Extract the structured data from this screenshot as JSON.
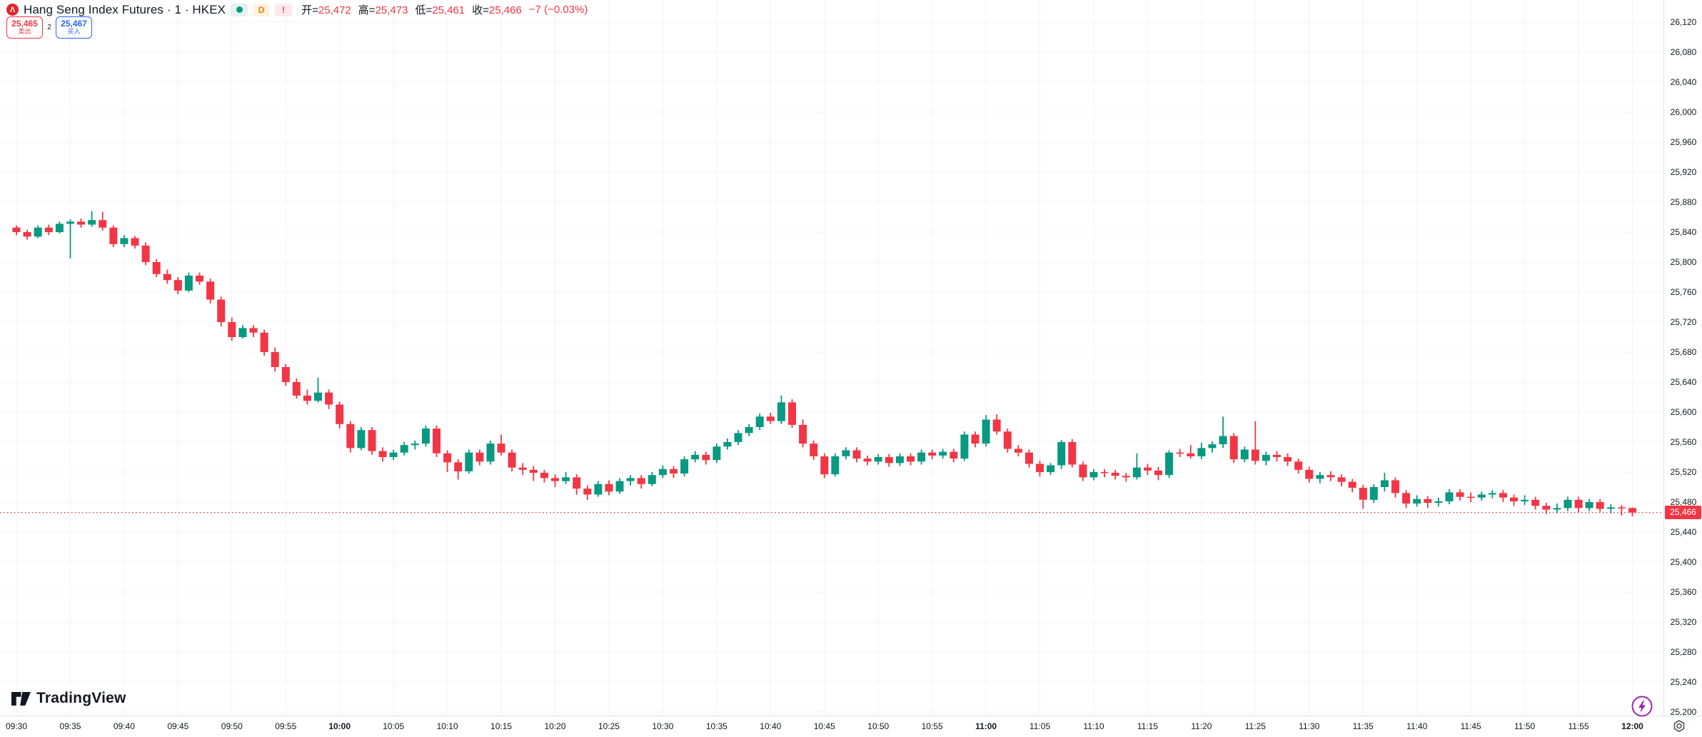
{
  "header": {
    "symbol_title": "Hang Seng Index Futures · 1 · HKEX",
    "interval_badge": "D",
    "alert_badge": "!",
    "ohlc": {
      "open_label": "开",
      "open": "25,472",
      "high_label": "高",
      "high": "25,473",
      "low_label": "低",
      "low": "25,461",
      "close_label": "收",
      "close": "25,466",
      "change": "−7 (−0.03%)"
    }
  },
  "trade_widget": {
    "sell_price": "25,465",
    "sell_label": "卖出",
    "spread": "2",
    "buy_price": "25,467",
    "buy_label": "买入"
  },
  "watermark": {
    "brand": "TradingView"
  },
  "price_axis": {
    "labels": [
      "26,120",
      "26,080",
      "26,040",
      "26,000",
      "25,960",
      "25,920",
      "25,880",
      "25,840",
      "25,800",
      "25,760",
      "25,720",
      "25,680",
      "25,640",
      "25,600",
      "25,560",
      "25,520",
      "25,480",
      "25,440",
      "25,400",
      "25,360",
      "25,320",
      "25,280",
      "25,240",
      "25,200"
    ],
    "last_price_label": "25,466"
  },
  "time_axis": {
    "labels": [
      "09:30",
      "09:35",
      "09:40",
      "09:45",
      "09:50",
      "09:55",
      "10:00",
      "10:05",
      "10:10",
      "10:15",
      "10:20",
      "10:25",
      "10:30",
      "10:35",
      "10:40",
      "10:45",
      "10:50",
      "10:55",
      "11:00",
      "11:05",
      "11:10",
      "11:15",
      "11:20",
      "11:25",
      "11:30",
      "11:35",
      "11:40",
      "11:45",
      "11:50",
      "11:55",
      "12:00"
    ],
    "bold_labels": [
      "10:00",
      "11:00",
      "12:00"
    ]
  },
  "colors": {
    "up": "#089981",
    "down": "#f23645",
    "grid": "#f0f3fa",
    "axis_border": "#e0e3eb",
    "last_price": "#f23645",
    "accent_buy": "#2962ff"
  },
  "chart_data": {
    "type": "candlestick",
    "title": "Hang Seng Index Futures · 1 · HKEX",
    "interval_minutes": 1,
    "x_start": "09:30",
    "x_end": "12:00",
    "ylim": [
      25185,
      26135
    ],
    "price_tick_step": 40,
    "grid": true,
    "last_price": 25466,
    "candles_ohlc": [
      [
        25846,
        25849,
        25836,
        25840
      ],
      [
        25840,
        25843,
        25830,
        25834
      ],
      [
        25834,
        25849,
        25832,
        25846
      ],
      [
        25846,
        25850,
        25836,
        25840
      ],
      [
        25840,
        25854,
        25838,
        25851
      ],
      [
        25851,
        25857,
        25805,
        25854
      ],
      [
        25854,
        25858,
        25846,
        25850
      ],
      [
        25850,
        25868,
        25847,
        25856
      ],
      [
        25856,
        25867,
        25842,
        25846
      ],
      [
        25846,
        25849,
        25820,
        25824
      ],
      [
        25824,
        25836,
        25820,
        25832
      ],
      [
        25832,
        25835,
        25818,
        25822
      ],
      [
        25822,
        25826,
        25796,
        25800
      ],
      [
        25800,
        25804,
        25780,
        25784
      ],
      [
        25784,
        25790,
        25771,
        25776
      ],
      [
        25776,
        25780,
        25757,
        25762
      ],
      [
        25762,
        25786,
        25760,
        25782
      ],
      [
        25782,
        25786,
        25770,
        25774
      ],
      [
        25774,
        25778,
        25745,
        25750
      ],
      [
        25750,
        25754,
        25714,
        25720
      ],
      [
        25720,
        25726,
        25695,
        25700
      ],
      [
        25700,
        25716,
        25698,
        25712
      ],
      [
        25712,
        25716,
        25700,
        25706
      ],
      [
        25706,
        25710,
        25675,
        25680
      ],
      [
        25680,
        25686,
        25654,
        25660
      ],
      [
        25660,
        25664,
        25635,
        25640
      ],
      [
        25640,
        25645,
        25618,
        25622
      ],
      [
        25622,
        25630,
        25610,
        25615
      ],
      [
        25615,
        25646,
        25613,
        25626
      ],
      [
        25626,
        25630,
        25604,
        25610
      ],
      [
        25610,
        25614,
        25578,
        25584
      ],
      [
        25584,
        25588,
        25546,
        25552
      ],
      [
        25552,
        25580,
        25549,
        25576
      ],
      [
        25576,
        25580,
        25543,
        25548
      ],
      [
        25548,
        25553,
        25534,
        25540
      ],
      [
        25540,
        25550,
        25536,
        25546
      ],
      [
        25546,
        25560,
        25542,
        25556
      ],
      [
        25556,
        25562,
        25550,
        25558
      ],
      [
        25558,
        25582,
        25554,
        25578
      ],
      [
        25578,
        25582,
        25540,
        25545
      ],
      [
        25545,
        25549,
        25520,
        25533
      ],
      [
        25533,
        25537,
        25510,
        25521
      ],
      [
        25521,
        25550,
        25518,
        25546
      ],
      [
        25546,
        25550,
        25529,
        25534
      ],
      [
        25534,
        25562,
        25530,
        25558
      ],
      [
        25558,
        25570,
        25542,
        25546
      ],
      [
        25546,
        25550,
        25521,
        25526
      ],
      [
        25526,
        25532,
        25516,
        25523
      ],
      [
        25523,
        25528,
        25508,
        25519
      ],
      [
        25519,
        25523,
        25506,
        25512
      ],
      [
        25512,
        25517,
        25500,
        25508
      ],
      [
        25508,
        25520,
        25504,
        25513
      ],
      [
        25513,
        25517,
        25490,
        25498
      ],
      [
        25498,
        25502,
        25483,
        25490
      ],
      [
        25490,
        25508,
        25487,
        25504
      ],
      [
        25504,
        25509,
        25489,
        25494
      ],
      [
        25494,
        25512,
        25491,
        25508
      ],
      [
        25508,
        25516,
        25502,
        25512
      ],
      [
        25512,
        25516,
        25498,
        25504
      ],
      [
        25504,
        25520,
        25501,
        25516
      ],
      [
        25516,
        25529,
        25512,
        25524
      ],
      [
        25524,
        25528,
        25512,
        25518
      ],
      [
        25518,
        25541,
        25514,
        25537
      ],
      [
        25537,
        25548,
        25533,
        25543
      ],
      [
        25543,
        25547,
        25530,
        25536
      ],
      [
        25536,
        25558,
        25532,
        25554
      ],
      [
        25554,
        25565,
        25550,
        25560
      ],
      [
        25560,
        25576,
        25556,
        25572
      ],
      [
        25572,
        25584,
        25568,
        25580
      ],
      [
        25580,
        25598,
        25576,
        25594
      ],
      [
        25594,
        25599,
        25584,
        25588
      ],
      [
        25588,
        25622,
        25584,
        25613
      ],
      [
        25613,
        25617,
        25579,
        25583
      ],
      [
        25583,
        25590,
        25553,
        25558
      ],
      [
        25558,
        25562,
        25536,
        25541
      ],
      [
        25541,
        25545,
        25512,
        25517
      ],
      [
        25517,
        25545,
        25514,
        25541
      ],
      [
        25541,
        25553,
        25537,
        25549
      ],
      [
        25549,
        25553,
        25533,
        25538
      ],
      [
        25538,
        25542,
        25529,
        25534
      ],
      [
        25534,
        25544,
        25530,
        25540
      ],
      [
        25540,
        25544,
        25527,
        25532
      ],
      [
        25532,
        25545,
        25528,
        25541
      ],
      [
        25541,
        25545,
        25529,
        25534
      ],
      [
        25534,
        25550,
        25530,
        25546
      ],
      [
        25546,
        25550,
        25537,
        25542
      ],
      [
        25542,
        25551,
        25538,
        25547
      ],
      [
        25547,
        25551,
        25533,
        25538
      ],
      [
        25538,
        25574,
        25535,
        25570
      ],
      [
        25570,
        25574,
        25553,
        25558
      ],
      [
        25558,
        25596,
        25554,
        25590
      ],
      [
        25590,
        25597,
        25570,
        25574
      ],
      [
        25574,
        25578,
        25546,
        25551
      ],
      [
        25551,
        25556,
        25541,
        25546
      ],
      [
        25546,
        25550,
        25526,
        25531
      ],
      [
        25531,
        25535,
        25514,
        25520
      ],
      [
        25520,
        25532,
        25516,
        25529
      ],
      [
        25529,
        25563,
        25524,
        25560
      ],
      [
        25560,
        25564,
        25526,
        25530
      ],
      [
        25530,
        25534,
        25508,
        25513
      ],
      [
        25513,
        25524,
        25509,
        25520
      ],
      [
        25520,
        25524,
        25513,
        25519
      ],
      [
        25519,
        25523,
        25510,
        25515
      ],
      [
        25515,
        25519,
        25507,
        25513
      ],
      [
        25513,
        25545,
        25510,
        25526
      ],
      [
        25526,
        25531,
        25516,
        25522
      ],
      [
        25522,
        25527,
        25509,
        25516
      ],
      [
        25516,
        25549,
        25512,
        25546
      ],
      [
        25546,
        25551,
        25540,
        25545
      ],
      [
        25545,
        25556,
        25538,
        25541
      ],
      [
        25541,
        25559,
        25537,
        25552
      ],
      [
        25552,
        25561,
        25546,
        25557
      ],
      [
        25557,
        25594,
        25552,
        25568
      ],
      [
        25568,
        25572,
        25532,
        25537
      ],
      [
        25537,
        25554,
        25533,
        25550
      ],
      [
        25550,
        25588,
        25530,
        25535
      ],
      [
        25535,
        25547,
        25529,
        25543
      ],
      [
        25543,
        25548,
        25534,
        25540
      ],
      [
        25540,
        25545,
        25528,
        25534
      ],
      [
        25534,
        25538,
        25518,
        25523
      ],
      [
        25523,
        25527,
        25506,
        25511
      ],
      [
        25511,
        25520,
        25505,
        25516
      ],
      [
        25516,
        25521,
        25508,
        25513
      ],
      [
        25513,
        25517,
        25501,
        25507
      ],
      [
        25507,
        25511,
        25493,
        25499
      ],
      [
        25499,
        25503,
        25471,
        25483
      ],
      [
        25483,
        25504,
        25479,
        25500
      ],
      [
        25500,
        25519,
        25494,
        25509
      ],
      [
        25509,
        25513,
        25486,
        25492
      ],
      [
        25492,
        25496,
        25472,
        25478
      ],
      [
        25478,
        25489,
        25474,
        25484
      ],
      [
        25484,
        25488,
        25472,
        25479
      ],
      [
        25479,
        25486,
        25474,
        25481
      ],
      [
        25481,
        25497,
        25477,
        25493
      ],
      [
        25493,
        25497,
        25482,
        25487
      ],
      [
        25487,
        25493,
        25480,
        25486
      ],
      [
        25486,
        25494,
        25482,
        25490
      ],
      [
        25490,
        25496,
        25485,
        25492
      ],
      [
        25492,
        25496,
        25480,
        25486
      ],
      [
        25486,
        25490,
        25475,
        25481
      ],
      [
        25481,
        25489,
        25476,
        25483
      ],
      [
        25483,
        25487,
        25470,
        25475
      ],
      [
        25475,
        25479,
        25464,
        25470
      ],
      [
        25470,
        25478,
        25465,
        25472
      ],
      [
        25472,
        25487,
        25468,
        25483
      ],
      [
        25483,
        25487,
        25466,
        25472
      ],
      [
        25472,
        25484,
        25468,
        25480
      ],
      [
        25480,
        25484,
        25467,
        25471
      ],
      [
        25471,
        25477,
        25465,
        25473
      ],
      [
        25473,
        25476,
        25462,
        25472
      ],
      [
        25472,
        25473,
        25461,
        25466
      ]
    ]
  }
}
